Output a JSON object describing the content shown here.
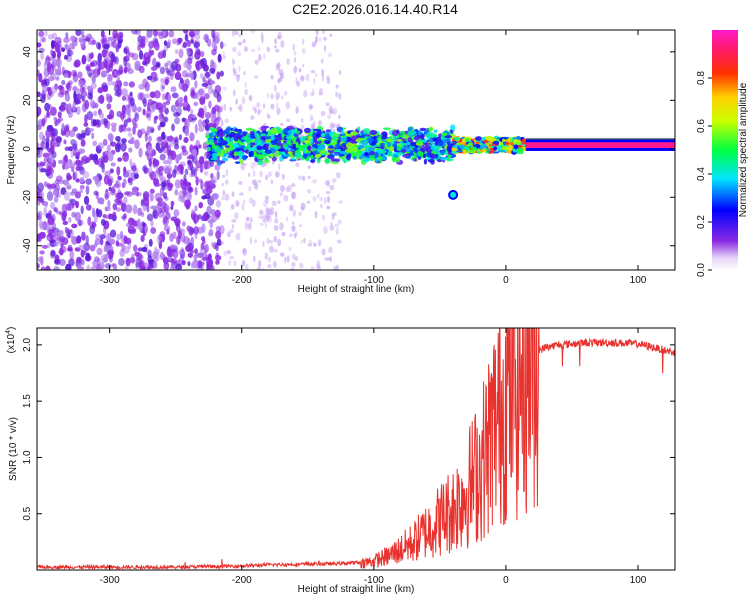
{
  "title": "C2E2.2026.016.14.40.R14",
  "chart_data": [
    {
      "type": "heatmap",
      "name": "spectrogram",
      "xlabel": "Height of straight line (km)",
      "ylabel": "Frequency (Hz)",
      "xlim": [
        -355,
        128
      ],
      "ylim": [
        -50,
        49
      ],
      "x_ticks": [
        -300,
        -200,
        -100,
        0,
        100
      ],
      "x_tick_labels": [
        "-300",
        "-200",
        "-100",
        "0",
        "100"
      ],
      "y_ticks": [
        -40,
        -20,
        0,
        20,
        40
      ],
      "y_tick_labels": [
        "-40",
        "-20",
        "0",
        "20",
        "40"
      ],
      "colorbar": {
        "label": "Normalized spectral amplitude",
        "range": [
          0,
          1
        ],
        "ticks": [
          0.0,
          0.2,
          0.4,
          0.6,
          0.8
        ],
        "tick_labels": [
          "0.0",
          "0.2",
          "0.4",
          "0.6",
          "0.8"
        ],
        "colormap": "rainbow (purple-blue-cyan-green-yellow-red-magenta)"
      },
      "features": [
        {
          "region": "noise",
          "x_range": [
            -355,
            -215
          ],
          "amplitude": 0.05,
          "description": "broadband noise across full frequency range"
        },
        {
          "region": "sparse noise",
          "x_range": [
            -215,
            -125
          ],
          "amplitude": 0.02
        },
        {
          "region": "signal band",
          "x_range": [
            -225,
            -40
          ],
          "freq_center": 1.5,
          "freq_halfwidth": 6,
          "amplitude": 0.3
        },
        {
          "region": "transition",
          "x_range": [
            -40,
            15
          ],
          "freq_center": 1.5,
          "freq_halfwidth": 3,
          "amplitude": 0.6
        },
        {
          "region": "clean carrier",
          "x_range": [
            15,
            128
          ],
          "freq_center": 1.5,
          "freq_halfwidth": 1.2,
          "amplitude": 0.95
        },
        {
          "region": "side blob",
          "x_center": -40,
          "freq_center": -19,
          "amplitude": 0.4
        }
      ]
    },
    {
      "type": "line",
      "name": "snr",
      "xlabel": "Height of straight line (km)",
      "ylabel": "SNR (10 * v/v)",
      "scale_label": "(x10",
      "scale_exponent": "4",
      "color": "#e8322e",
      "xlim": [
        -355,
        128
      ],
      "ylim": [
        0,
        2.15
      ],
      "x_ticks": [
        -300,
        -200,
        -100,
        0,
        100
      ],
      "x_tick_labels": [
        "-300",
        "-200",
        "-100",
        "0",
        "100"
      ],
      "y_ticks": [
        0.5,
        1.0,
        1.5,
        2.0
      ],
      "y_tick_labels": [
        "0.5",
        "1.0",
        "1.5",
        "2.0"
      ],
      "envelope": {
        "x": [
          -355,
          -250,
          -200,
          -180,
          -130,
          -110,
          -100,
          -90,
          -80,
          -70,
          -60,
          -50,
          -40,
          -30,
          -20,
          -15,
          -10,
          -5,
          0,
          10,
          15,
          20,
          25,
          30,
          40,
          60,
          80,
          100,
          128
        ],
        "y": [
          0.02,
          0.02,
          0.03,
          0.04,
          0.05,
          0.06,
          0.08,
          0.12,
          0.18,
          0.25,
          0.35,
          0.45,
          0.55,
          0.7,
          0.9,
          1.05,
          1.25,
          1.4,
          1.55,
          1.7,
          1.82,
          1.9,
          1.95,
          1.98,
          2.0,
          2.02,
          2.02,
          2.01,
          1.93
        ]
      }
    }
  ]
}
